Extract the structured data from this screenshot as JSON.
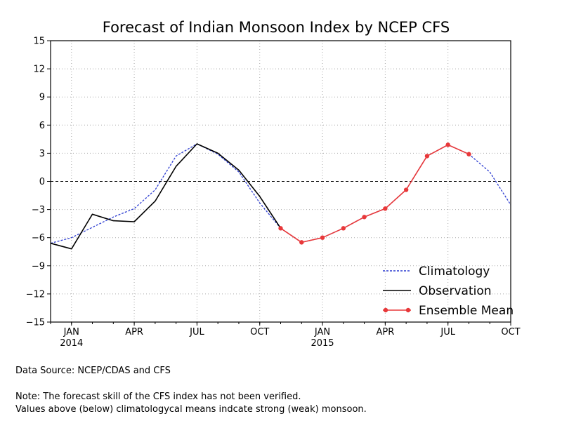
{
  "chart_data": {
    "type": "line",
    "title": "Forecast of Indian Monsoon Index by NCEP CFS",
    "xlabel": "",
    "ylabel": "",
    "ylim": [
      -15,
      15
    ],
    "yticks": [
      15,
      12,
      9,
      6,
      3,
      0,
      -3,
      -6,
      -9,
      -12,
      -15
    ],
    "ytick_labels": [
      "15",
      "12",
      "9",
      "6",
      "3",
      "0",
      "−3",
      "−6",
      "−9",
      "−12",
      "−15"
    ],
    "xlim": [
      0,
      22
    ],
    "xticks": [
      {
        "x": 1,
        "label": "JAN",
        "year": "2014"
      },
      {
        "x": 4,
        "label": "APR",
        "year": ""
      },
      {
        "x": 7,
        "label": "JUL",
        "year": ""
      },
      {
        "x": 10,
        "label": "OCT",
        "year": ""
      },
      {
        "x": 13,
        "label": "JAN",
        "year": "2015"
      },
      {
        "x": 16,
        "label": "APR",
        "year": ""
      },
      {
        "x": 19,
        "label": "JUL",
        "year": ""
      },
      {
        "x": 22,
        "label": "OCT",
        "year": ""
      }
    ],
    "grid": true,
    "zero_line": true,
    "legend_position": "bottom-right",
    "series": [
      {
        "name": "Climatology",
        "color": "#2b3bd1",
        "style": "dashed",
        "x": [
          0,
          1,
          2,
          3,
          4,
          5,
          6,
          7,
          8,
          9,
          10,
          11,
          12,
          13,
          14,
          15,
          16,
          17,
          18,
          19,
          20,
          21,
          22
        ],
        "values": [
          -6.6,
          -6.0,
          -4.9,
          -3.8,
          -2.9,
          -0.9,
          2.7,
          4.0,
          2.9,
          1.0,
          -2.3,
          -5.0,
          -6.5,
          -6.0,
          -5.0,
          -3.8,
          -2.9,
          -0.9,
          2.7,
          3.9,
          2.9,
          1.0,
          -2.5
        ]
      },
      {
        "name": "Observation",
        "color": "#000000",
        "style": "solid",
        "x": [
          0,
          1,
          2,
          3,
          4,
          5,
          6,
          7,
          8,
          9,
          10,
          11
        ],
        "values": [
          -6.6,
          -7.2,
          -3.5,
          -4.2,
          -4.3,
          -2.1,
          1.6,
          4.0,
          3.0,
          1.2,
          -1.6,
          -5.0
        ]
      },
      {
        "name": "Ensemble Mean",
        "color": "#e8383a",
        "style": "solid-markers",
        "x": [
          11,
          12,
          13,
          14,
          15,
          16,
          17,
          18,
          19,
          20
        ],
        "values": [
          -5.0,
          -6.5,
          -6.0,
          -5.0,
          -3.8,
          -2.9,
          -0.9,
          2.7,
          3.9,
          2.9
        ]
      }
    ]
  },
  "footer": {
    "source": "Data Source:  NCEP/CDAS and CFS",
    "note_line1": "Note: The forecast skill of the CFS index has not been verified.",
    "note_line2": "Values above (below) climatologycal means indcate strong (weak) monsoon."
  }
}
